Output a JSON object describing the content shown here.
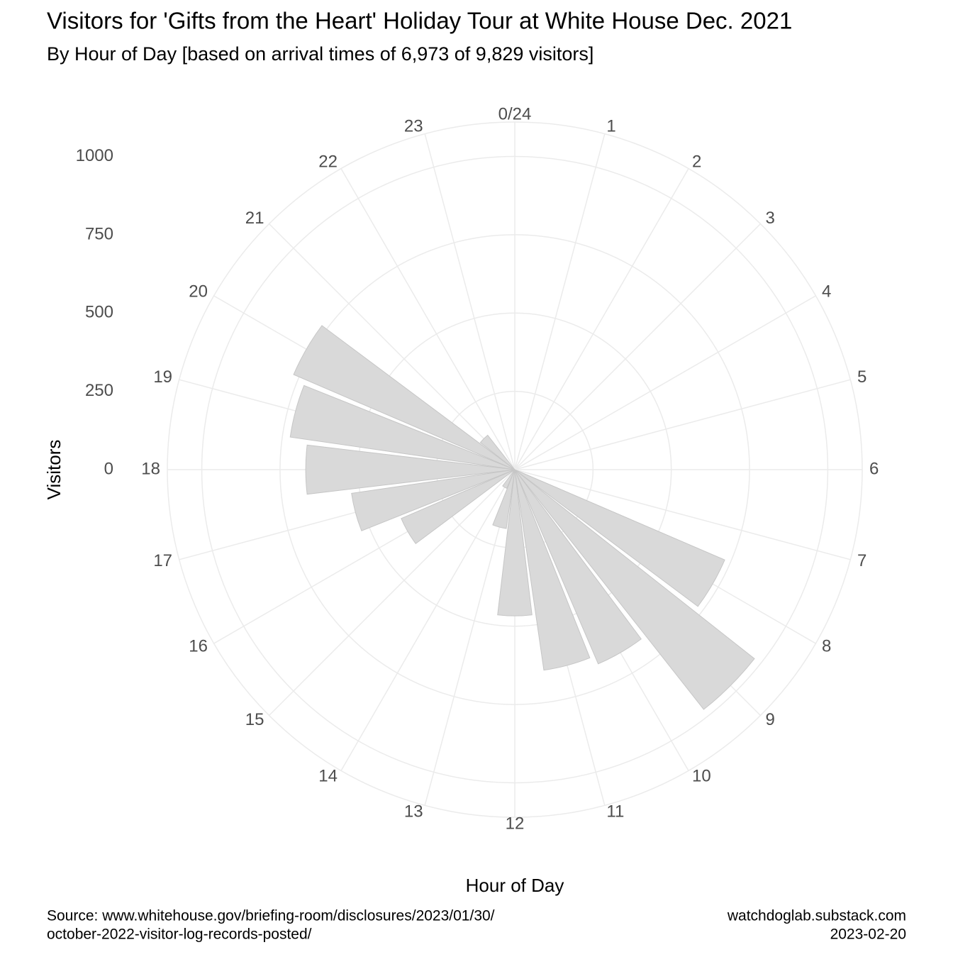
{
  "chart_data": {
    "type": "polar_bar",
    "title": "Visitors for 'Gifts from the Heart' Holiday Tour at White House Dec. 2021",
    "subtitle": "By Hour of Day [based on arrival times of 6,973 of 9,829 visitors]",
    "x_label": "Hour of Day",
    "y_label": "Visitors",
    "caption_left": [
      "Source: www.whitehouse.gov/briefing-room/disclosures/2023/01/30/",
      "october-2022-visitor-log-records-posted/"
    ],
    "caption_right": [
      "watchdoglab.substack.com",
      "2023-02-20"
    ],
    "categories": [
      "0/24",
      "1",
      "2",
      "3",
      "4",
      "5",
      "6",
      "7",
      "8",
      "9",
      "10",
      "11",
      "12",
      "13",
      "14",
      "15",
      "16",
      "17",
      "18",
      "19",
      "20",
      "21",
      "22",
      "23"
    ],
    "values": [
      0,
      0,
      0,
      0,
      0,
      0,
      0,
      0,
      730,
      975,
      675,
      647,
      467,
      190,
      65,
      0,
      395,
      527,
      668,
      725,
      769,
      140,
      0,
      0
    ],
    "color": "#d9d9d9",
    "ylim": [
      0,
      1110
    ],
    "yticks": [
      0,
      250,
      500,
      750,
      1000
    ],
    "grid": true
  }
}
